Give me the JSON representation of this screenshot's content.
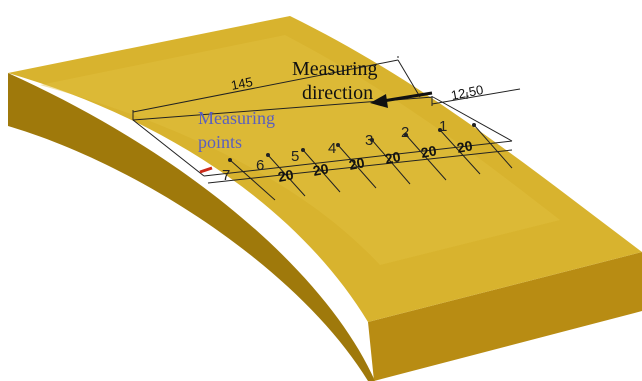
{
  "labels": {
    "direction_line1": "Measuring",
    "direction_line2": "direction",
    "points_line1": "Measuring",
    "points_line2": "points",
    "total_length": "145",
    "end_offset": "12.50"
  },
  "segments": [
    {
      "number": "1",
      "width": "20"
    },
    {
      "number": "2",
      "width": "20"
    },
    {
      "number": "3",
      "width": "20"
    },
    {
      "number": "4",
      "width": "20"
    },
    {
      "number": "5",
      "width": "20"
    },
    {
      "number": "6",
      "width": "20"
    },
    {
      "number": "7",
      "width": ""
    }
  ],
  "colors": {
    "top_face": "#d6b12c",
    "front_face": "#b58a12",
    "side_face": "#a07a0c",
    "note_text": "#5a5fbf",
    "marker": "#cc2a1a"
  }
}
